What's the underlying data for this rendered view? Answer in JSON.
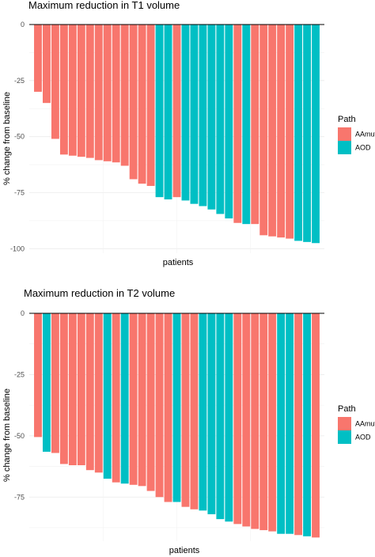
{
  "colors": {
    "AAmut": "#F8766D",
    "AOD": "#00BFC4"
  },
  "chart_data": [
    {
      "type": "bar",
      "title": "Maximum reduction in T1 volume",
      "xlabel": "patients",
      "ylabel": "% change from baseline",
      "ylim": [
        -102,
        0
      ],
      "yticks": [
        0,
        -25,
        -50,
        -75,
        -100
      ],
      "ytick_labels": [
        "0",
        "-25",
        "-50",
        "-75",
        "-100"
      ],
      "grid": true,
      "legend_position": "right",
      "legend_title": "Path",
      "legend_entries": [
        "AAmut",
        "AOD"
      ],
      "series_groups": [
        "AAmut",
        "AAmut",
        "AAmut",
        "AAmut",
        "AAmut",
        "AAmut",
        "AAmut",
        "AAmut",
        "AAmut",
        "AAmut",
        "AAmut",
        "AAmut",
        "AAmut",
        "AAmut",
        "AOD",
        "AOD",
        "AAmut",
        "AOD",
        "AOD",
        "AOD",
        "AOD",
        "AOD",
        "AOD",
        "AAmut",
        "AOD",
        "AAmut",
        "AAmut",
        "AAmut",
        "AAmut",
        "AAmut",
        "AOD",
        "AOD",
        "AOD"
      ],
      "values": [
        -30,
        -35,
        -51,
        -58,
        -58.5,
        -59,
        -59.5,
        -60.5,
        -61,
        -61.5,
        -63,
        -69,
        -71,
        -72,
        -77,
        -78,
        -77,
        -78.5,
        -80,
        -81,
        -82.5,
        -84.5,
        -86.5,
        -88.5,
        -89,
        -89,
        -94,
        -94.5,
        -95,
        -95.5,
        -96.5,
        -97,
        -97.5
      ]
    },
    {
      "type": "bar",
      "title": "Maximum reduction in T2 volume",
      "xlabel": "patients",
      "ylabel": "% change from baseline",
      "ylim": [
        -93,
        0
      ],
      "yticks": [
        0,
        -25,
        -50,
        -75
      ],
      "ytick_labels": [
        "0",
        "-25",
        "-50",
        "-75"
      ],
      "grid": true,
      "legend_position": "right",
      "legend_title": "Path",
      "legend_entries": [
        "AAmut",
        "AOD"
      ],
      "series_groups": [
        "AAmut",
        "AOD",
        "AAmut",
        "AAmut",
        "AAmut",
        "AAmut",
        "AAmut",
        "AAmut",
        "AOD",
        "AAmut",
        "AOD",
        "AAmut",
        "AAmut",
        "AAmut",
        "AAmut",
        "AAmut",
        "AOD",
        "AAmut",
        "AAmut",
        "AOD",
        "AOD",
        "AOD",
        "AOD",
        "AAmut",
        "AAmut",
        "AAmut",
        "AAmut",
        "AAmut",
        "AOD",
        "AOD",
        "AAmut",
        "AOD",
        "AAmut"
      ],
      "values": [
        -50.5,
        -56.5,
        -57,
        -61.5,
        -62,
        -62,
        -64,
        -65,
        -67.5,
        -69,
        -69.5,
        -70,
        -70.5,
        -72.5,
        -75,
        -77,
        -77,
        -79,
        -80,
        -80.5,
        -82,
        -84,
        -85,
        -86,
        -87,
        -88,
        -88.5,
        -89,
        -90,
        -90,
        -90.5,
        -91,
        -91.5
      ]
    }
  ]
}
